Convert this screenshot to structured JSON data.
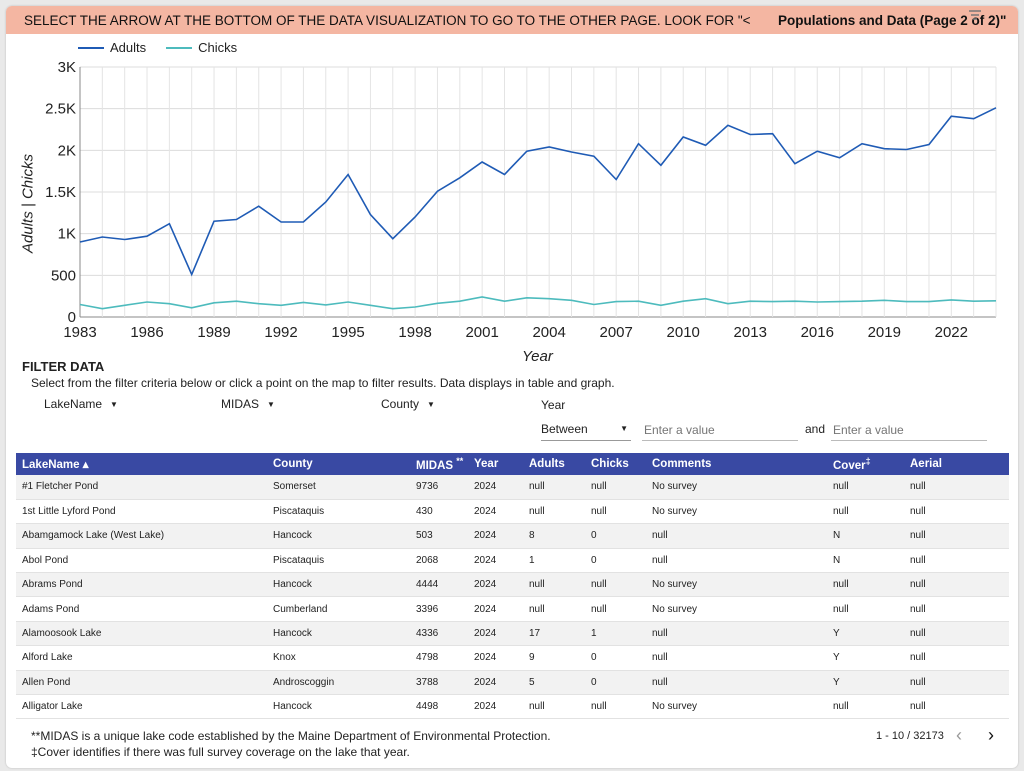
{
  "banner": {
    "instruction": "SELECT THE ARROW AT THE BOTTOM OF THE DATA VISUALIZATION TO GO TO THE OTHER PAGE. LOOK FOR \"<",
    "title": "Populations and Data (Page 2 of 2)\""
  },
  "colors": {
    "adults": "#1f5bb5",
    "chicks": "#4dbbbd",
    "header": "#3949a3",
    "banner": "#f4b6a2"
  },
  "chart_data": {
    "type": "line",
    "xlabel": "Year",
    "ylabel": "Adults | Chicks",
    "ylim": [
      0,
      3000
    ],
    "xlim": [
      1983,
      2024
    ],
    "y_ticks": [
      "0",
      "500",
      "1K",
      "1.5K",
      "2K",
      "2.5K",
      "3K"
    ],
    "x_ticks": [
      "1983",
      "1986",
      "1989",
      "1992",
      "1995",
      "1998",
      "2001",
      "2004",
      "2007",
      "2010",
      "2013",
      "2016",
      "2019",
      "2022"
    ],
    "grid": true,
    "legend": "top-left",
    "x": [
      1983,
      1984,
      1985,
      1986,
      1987,
      1988,
      1989,
      1990,
      1991,
      1992,
      1993,
      1994,
      1995,
      1996,
      1997,
      1998,
      1999,
      2000,
      2001,
      2002,
      2003,
      2004,
      2005,
      2006,
      2007,
      2008,
      2009,
      2010,
      2011,
      2012,
      2013,
      2014,
      2015,
      2016,
      2017,
      2018,
      2019,
      2020,
      2021,
      2022,
      2023,
      2024
    ],
    "series": [
      {
        "name": "Adults",
        "values": [
          900,
          960,
          930,
          970,
          1120,
          510,
          1150,
          1170,
          1330,
          1140,
          1140,
          1380,
          1710,
          1230,
          940,
          1200,
          1510,
          1670,
          1860,
          1710,
          1990,
          2040,
          1980,
          1930,
          1650,
          2080,
          1820,
          2160,
          2060,
          2300,
          2190,
          2200,
          1840,
          1990,
          1910,
          2080,
          2020,
          2010,
          2070,
          2410,
          2380,
          2510
        ]
      },
      {
        "name": "Chicks",
        "values": [
          150,
          100,
          140,
          180,
          160,
          110,
          170,
          190,
          160,
          140,
          175,
          145,
          180,
          140,
          100,
          120,
          165,
          190,
          240,
          190,
          230,
          220,
          200,
          150,
          185,
          190,
          140,
          190,
          220,
          160,
          190,
          185,
          190,
          180,
          185,
          190,
          200,
          185,
          185,
          205,
          190,
          195
        ]
      }
    ]
  },
  "filter": {
    "heading": "FILTER DATA",
    "description": "Select from the filter criteria below or click a point on the map to filter results. Data displays in table and graph.",
    "dropdowns": [
      "LakeName",
      "MIDAS",
      "County"
    ],
    "year_label": "Year",
    "operator": "Between",
    "placeholder_from": "Enter a value",
    "and_label": "and",
    "placeholder_to": "Enter a value"
  },
  "table": {
    "columns": [
      "LakeName ▴",
      "County",
      "MIDAS",
      "Year",
      "Adults",
      "Chicks",
      "Comments",
      "Cover",
      "Aerial"
    ],
    "midas_sup": "**",
    "cover_sup": "‡",
    "rows": [
      [
        "#1 Fletcher Pond",
        "Somerset",
        "9736",
        "2024",
        "null",
        "null",
        "No survey",
        "null",
        "null"
      ],
      [
        "1st Little Lyford Pond",
        "Piscataquis",
        "430",
        "2024",
        "null",
        "null",
        "No survey",
        "null",
        "null"
      ],
      [
        "Abamgamock Lake (West Lake)",
        "Hancock",
        "503",
        "2024",
        "8",
        "0",
        "null",
        "N",
        "null"
      ],
      [
        "Abol Pond",
        "Piscataquis",
        "2068",
        "2024",
        "1",
        "0",
        "null",
        "N",
        "null"
      ],
      [
        "Abrams Pond",
        "Hancock",
        "4444",
        "2024",
        "null",
        "null",
        "No survey",
        "null",
        "null"
      ],
      [
        "Adams Pond",
        "Cumberland",
        "3396",
        "2024",
        "null",
        "null",
        "No survey",
        "null",
        "null"
      ],
      [
        "Alamoosook Lake",
        "Hancock",
        "4336",
        "2024",
        "17",
        "1",
        "null",
        "Y",
        "null"
      ],
      [
        "Alford Lake",
        "Knox",
        "4798",
        "2024",
        "9",
        "0",
        "null",
        "Y",
        "null"
      ],
      [
        "Allen Pond",
        "Androscoggin",
        "3788",
        "2024",
        "5",
        "0",
        "null",
        "Y",
        "null"
      ],
      [
        "Alligator Lake",
        "Hancock",
        "4498",
        "2024",
        "null",
        "null",
        "No survey",
        "null",
        "null"
      ]
    ]
  },
  "footnotes": {
    "midas": "**MIDAS is a unique lake code established by the Maine Department of Environmental Protection.",
    "cover": "‡Cover identifies if there was full survey coverage on the lake that year."
  },
  "pager": {
    "range": "1 - 10 / 32173",
    "prev": "‹",
    "next": "›"
  }
}
